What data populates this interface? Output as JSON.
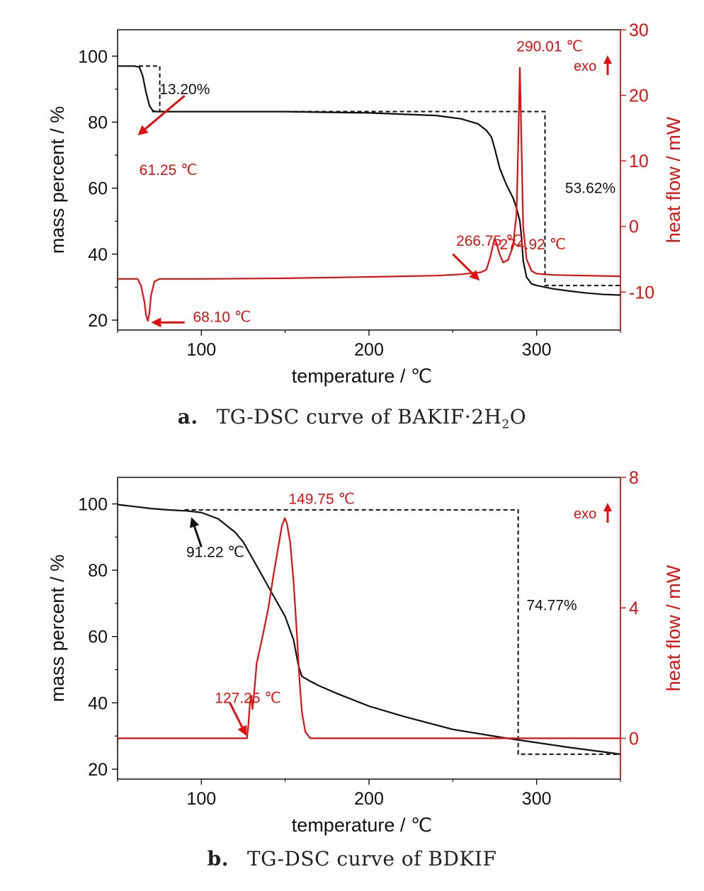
{
  "chart_data": [
    {
      "type": "line",
      "panel_label": "a.",
      "caption_text": "TG-DSC curve of BAKIF·2H",
      "caption_sub": "2",
      "caption_tail": "O",
      "xlabel": "temperature / ℃",
      "ylabel": "mass percent / %",
      "y2label": "heat flow / mW",
      "xlim": [
        50,
        350
      ],
      "ylim": [
        17,
        108
      ],
      "y2lim": [
        -15.8,
        30
      ],
      "xticks": [
        100,
        200,
        300
      ],
      "yticks": [
        20,
        40,
        60,
        80,
        100
      ],
      "y2ticks": [
        -10,
        0,
        10,
        20,
        30
      ],
      "exo_label": "exo",
      "colors": {
        "tg": "#111111",
        "dsc": "#e01010",
        "box": "#111111"
      },
      "series": [
        {
          "axis": "left",
          "x": [
            50,
            60,
            63,
            65,
            67,
            69,
            71,
            73,
            80,
            100,
            150,
            200,
            240,
            255,
            265,
            270,
            273,
            275,
            278,
            282,
            286,
            288,
            290,
            291,
            292,
            294,
            297,
            300,
            305,
            310,
            320,
            330,
            340,
            350
          ],
          "y": [
            97,
            97,
            96.7,
            94,
            89,
            85,
            83.5,
            83.2,
            83.2,
            83.2,
            83.2,
            82.8,
            82,
            81,
            79.5,
            77.5,
            75.5,
            72,
            66,
            61,
            57,
            54,
            50,
            45,
            38,
            33,
            31,
            30.5,
            30,
            29.5,
            28.8,
            28.2,
            27.8,
            27.6
          ]
        },
        {
          "axis": "right",
          "x": [
            50,
            62,
            64,
            66,
            67,
            68.1,
            69,
            70,
            72,
            75,
            100,
            150,
            200,
            240,
            255,
            262,
            266.75,
            270,
            272,
            274.92,
            276,
            278,
            280,
            283,
            286,
            288,
            289,
            290.01,
            291,
            292,
            294,
            297,
            300,
            310,
            330,
            350
          ],
          "y": [
            -8,
            -8,
            -9,
            -11.5,
            -13.5,
            -14.4,
            -13.2,
            -10.5,
            -8.4,
            -8,
            -8,
            -7.9,
            -7.7,
            -7.5,
            -7.3,
            -7.1,
            -7,
            -6.6,
            -5,
            -1.9,
            -2.5,
            -4.3,
            -5.5,
            -5.1,
            -3,
            2,
            12,
            24.2,
            12,
            0,
            -5,
            -6.8,
            -7.2,
            -7.4,
            -7.5,
            -7.6
          ]
        }
      ],
      "box": {
        "x": [
          70.5,
          305
        ],
        "y": [
          30.5,
          83.2
        ],
        "top_y": 97,
        "step_x": 62.5
      },
      "annotations": [
        {
          "text": "13.20%",
          "x": 75,
          "y": 88.5
        },
        {
          "text": "53.62%",
          "x": 317,
          "y": 58.5
        },
        {
          "text": "61.25 ℃",
          "x": 63,
          "y": 64
        },
        {
          "text": "68.10 ℃",
          "x": 95,
          "y": 19.5
        },
        {
          "text": "266.75 ℃",
          "x": 252,
          "y": 42.5
        },
        {
          "text": "274.92 ℃",
          "x": 278,
          "y": 41.5
        },
        {
          "text": "290.01 ℃",
          "x": 288,
          "y": 101.5
        }
      ]
    },
    {
      "type": "line",
      "panel_label": "b.",
      "caption_text": "TG-DSC curve of BDKIF",
      "caption_sub": "",
      "caption_tail": "",
      "xlabel": "temperature / ℃",
      "ylabel": "mass percent / %",
      "y2label": "heat flow / mW",
      "xlim": [
        50,
        350
      ],
      "ylim": [
        17,
        108
      ],
      "y2lim": [
        -1.25,
        8
      ],
      "xticks": [
        100,
        200,
        300
      ],
      "yticks": [
        20,
        40,
        60,
        80,
        100
      ],
      "y2ticks": [
        0,
        4,
        8
      ],
      "exo_label": "exo",
      "colors": {
        "tg": "#111111",
        "dsc": "#e01010",
        "box": "#111111"
      },
      "series": [
        {
          "axis": "left",
          "x": [
            50,
            60,
            70,
            80,
            91.22,
            100,
            110,
            120,
            125,
            130,
            135,
            140,
            145,
            150,
            155,
            158,
            160,
            165,
            170,
            180,
            200,
            220,
            250,
            280,
            300,
            320,
            340,
            350
          ],
          "y": [
            99.8,
            99.2,
            98.6,
            98.2,
            97.9,
            97.4,
            95.5,
            91.5,
            88.5,
            84,
            79.5,
            75,
            70.5,
            66,
            59,
            51,
            48,
            46.5,
            45.2,
            43,
            39,
            36,
            32,
            29.5,
            28,
            26.5,
            25.2,
            24.5
          ]
        },
        {
          "axis": "right",
          "x": [
            50,
            100,
            120,
            125,
            127.25,
            128,
            129,
            129.8,
            130.5,
            131.5,
            133,
            136,
            140,
            143,
            146,
            148,
            149.75,
            151,
            153,
            155,
            157,
            158.5,
            160,
            162,
            165,
            170,
            200,
            250,
            300,
            350
          ],
          "y": [
            0,
            0,
            0,
            0,
            0,
            0.4,
            1.1,
            1.3,
            0.9,
            1.4,
            2.3,
            3,
            4,
            5,
            5.9,
            6.5,
            6.75,
            6.6,
            6,
            4.8,
            3.2,
            1.8,
            0.8,
            0.2,
            0,
            0,
            0,
            0,
            0,
            0
          ]
        }
      ],
      "box": {
        "x": [
          90,
          289
        ],
        "y": [
          24.5,
          98.2
        ],
        "top_y": null,
        "step_x": null
      },
      "annotations": [
        {
          "text": "74.77%",
          "x": 294,
          "y": 68
        },
        {
          "text": "91.22 ℃",
          "x": 91,
          "y": 84
        },
        {
          "text": "127.25 ℃",
          "x": 108,
          "y": 40
        },
        {
          "text": "149.75 ℃",
          "x": 152,
          "y": 100
        }
      ]
    }
  ]
}
